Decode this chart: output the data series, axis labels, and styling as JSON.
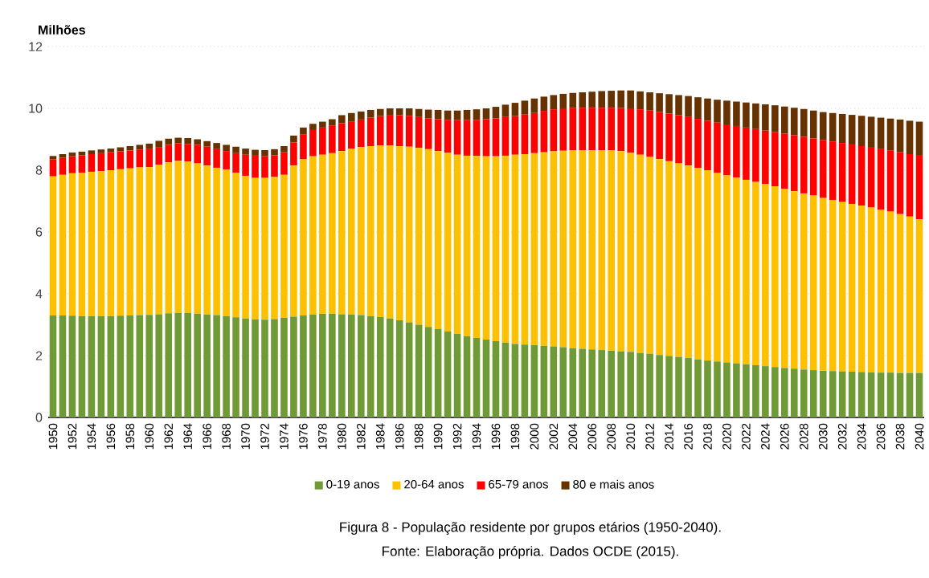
{
  "chart_data": {
    "type": "bar",
    "stacked": true,
    "title": "Figura 8 - População residente por grupos etários (1950-2040).",
    "ylabel": "Milhões",
    "annotations": [
      "Fonte: Elaboração própria. Dados OCDE (2015)."
    ],
    "categories": [
      "1950",
      null,
      "1952",
      null,
      "1954",
      null,
      "1956",
      null,
      "1958",
      null,
      "1960",
      null,
      "1962",
      null,
      "1964",
      null,
      "1966",
      null,
      "1968",
      null,
      "1970",
      null,
      "1972",
      null,
      "1974",
      null,
      "1976",
      null,
      "1978",
      null,
      "1980",
      null,
      "1982",
      null,
      "1984",
      null,
      "1986",
      null,
      "1988",
      null,
      "1990",
      null,
      "1992",
      null,
      "1994",
      null,
      "1996",
      null,
      "1998",
      null,
      "2000",
      null,
      "2002",
      null,
      "2004",
      null,
      "2006",
      null,
      "2008",
      null,
      "2010",
      null,
      "2012",
      null,
      "2014",
      null,
      "2016",
      null,
      "2018",
      null,
      "2020",
      null,
      "2022",
      null,
      "2024",
      null,
      "2026",
      null,
      "2028",
      null,
      "2030",
      null,
      "2032",
      null,
      "2034",
      null,
      "2036",
      null,
      "2038",
      null,
      "2040"
    ],
    "series": [
      {
        "name": "0-19 anos",
        "color": "#6f9a35",
        "values": [
          3.3,
          3.3,
          3.29,
          3.28,
          3.28,
          3.28,
          3.28,
          3.29,
          3.3,
          3.31,
          3.32,
          3.34,
          3.37,
          3.38,
          3.38,
          3.36,
          3.33,
          3.31,
          3.28,
          3.24,
          3.2,
          3.17,
          3.16,
          3.18,
          3.22,
          3.26,
          3.3,
          3.33,
          3.35,
          3.36,
          3.34,
          3.33,
          3.31,
          3.28,
          3.25,
          3.2,
          3.14,
          3.08,
          3.0,
          2.93,
          2.86,
          2.78,
          2.7,
          2.63,
          2.57,
          2.52,
          2.47,
          2.42,
          2.38,
          2.36,
          2.34,
          2.32,
          2.3,
          2.27,
          2.24,
          2.22,
          2.2,
          2.18,
          2.16,
          2.14,
          2.12,
          2.09,
          2.06,
          2.02,
          1.99,
          1.96,
          1.92,
          1.88,
          1.84,
          1.81,
          1.78,
          1.75,
          1.72,
          1.69,
          1.66,
          1.63,
          1.6,
          1.58,
          1.55,
          1.53,
          1.51,
          1.5,
          1.49,
          1.48,
          1.47,
          1.46,
          1.45,
          1.45,
          1.44,
          1.44,
          1.44
        ]
      },
      {
        "name": "20-64 anos",
        "color": "#ffc000",
        "values": [
          4.5,
          4.55,
          4.61,
          4.64,
          4.67,
          4.69,
          4.72,
          4.74,
          4.76,
          4.78,
          4.78,
          4.84,
          4.88,
          4.92,
          4.9,
          4.86,
          4.82,
          4.77,
          4.74,
          4.68,
          4.62,
          4.58,
          4.59,
          4.6,
          4.63,
          4.89,
          5.05,
          5.12,
          5.15,
          5.19,
          5.28,
          5.37,
          5.44,
          5.5,
          5.55,
          5.6,
          5.64,
          5.68,
          5.72,
          5.75,
          5.76,
          5.78,
          5.8,
          5.84,
          5.89,
          5.93,
          5.98,
          6.05,
          6.12,
          6.16,
          6.21,
          6.26,
          6.31,
          6.36,
          6.41,
          6.43,
          6.45,
          6.47,
          6.48,
          6.48,
          6.44,
          6.41,
          6.37,
          6.34,
          6.3,
          6.26,
          6.23,
          6.19,
          6.16,
          6.1,
          6.05,
          6.01,
          5.97,
          5.93,
          5.89,
          5.85,
          5.8,
          5.74,
          5.7,
          5.65,
          5.59,
          5.54,
          5.48,
          5.43,
          5.38,
          5.33,
          5.27,
          5.21,
          5.14,
          5.06,
          4.97
        ]
      },
      {
        "name": "65-79 anos",
        "color": "#ff0000",
        "values": [
          0.55,
          0.55,
          0.55,
          0.56,
          0.57,
          0.58,
          0.58,
          0.58,
          0.58,
          0.58,
          0.58,
          0.57,
          0.57,
          0.57,
          0.57,
          0.6,
          0.61,
          0.6,
          0.6,
          0.63,
          0.68,
          0.72,
          0.7,
          0.7,
          0.73,
          0.75,
          0.8,
          0.85,
          0.88,
          0.9,
          0.9,
          0.88,
          0.89,
          0.92,
          0.95,
          0.97,
          1.0,
          1.0,
          1.0,
          1.0,
          1.03,
          1.07,
          1.12,
          1.15,
          1.17,
          1.2,
          1.23,
          1.25,
          1.25,
          1.28,
          1.3,
          1.34,
          1.36,
          1.37,
          1.37,
          1.37,
          1.37,
          1.37,
          1.38,
          1.39,
          1.44,
          1.47,
          1.5,
          1.52,
          1.54,
          1.56,
          1.57,
          1.59,
          1.6,
          1.63,
          1.65,
          1.67,
          1.69,
          1.71,
          1.73,
          1.75,
          1.78,
          1.81,
          1.83,
          1.85,
          1.88,
          1.89,
          1.91,
          1.92,
          1.93,
          1.94,
          1.96,
          1.97,
          2.0,
          2.02,
          2.06
        ]
      },
      {
        "name": "80 e mais anos",
        "color": "#663300",
        "values": [
          0.11,
          0.12,
          0.12,
          0.12,
          0.12,
          0.12,
          0.12,
          0.13,
          0.14,
          0.15,
          0.18,
          0.2,
          0.2,
          0.18,
          0.19,
          0.18,
          0.18,
          0.2,
          0.2,
          0.21,
          0.2,
          0.19,
          0.2,
          0.2,
          0.2,
          0.22,
          0.23,
          0.2,
          0.19,
          0.2,
          0.26,
          0.27,
          0.26,
          0.25,
          0.23,
          0.23,
          0.22,
          0.24,
          0.26,
          0.28,
          0.3,
          0.3,
          0.31,
          0.33,
          0.34,
          0.35,
          0.37,
          0.4,
          0.43,
          0.45,
          0.47,
          0.46,
          0.46,
          0.47,
          0.48,
          0.5,
          0.52,
          0.54,
          0.55,
          0.57,
          0.58,
          0.58,
          0.59,
          0.61,
          0.63,
          0.65,
          0.68,
          0.7,
          0.72,
          0.74,
          0.77,
          0.79,
          0.81,
          0.83,
          0.85,
          0.87,
          0.88,
          0.89,
          0.9,
          0.9,
          0.9,
          0.92,
          0.94,
          0.96,
          0.98,
          1.0,
          1.02,
          1.04,
          1.06,
          1.08,
          1.1
        ]
      }
    ],
    "ylim": [
      0,
      12
    ],
    "yticks": [
      0,
      2,
      4,
      6,
      8,
      10,
      12
    ],
    "grid": "y",
    "legend": "bottom"
  }
}
